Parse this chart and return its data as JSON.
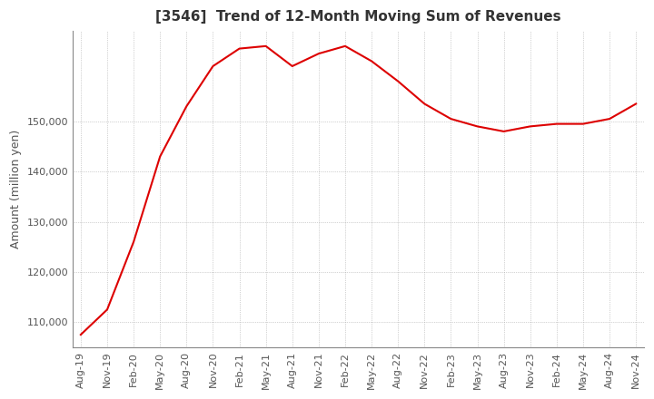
{
  "title": "[3546]  Trend of 12-Month Moving Sum of Revenues",
  "ylabel": "Amount (million yen)",
  "title_fontsize": 11,
  "label_fontsize": 9,
  "tick_fontsize": 8,
  "line_color": "#dd0000",
  "background_color": "#ffffff",
  "grid_color": "#aaaaaa",
  "x_labels": [
    "Aug-19",
    "Nov-19",
    "Feb-20",
    "May-20",
    "Aug-20",
    "Nov-20",
    "Feb-21",
    "May-21",
    "Aug-21",
    "Nov-21",
    "Feb-22",
    "May-22",
    "Aug-22",
    "Nov-22",
    "Feb-23",
    "May-23",
    "Aug-23",
    "Nov-23",
    "Feb-24",
    "May-24",
    "Aug-24",
    "Nov-24"
  ],
  "values": [
    107500,
    112500,
    126000,
    143000,
    153000,
    161000,
    164500,
    165000,
    161000,
    163500,
    165000,
    162000,
    158000,
    153500,
    150500,
    149000,
    148000,
    149000,
    149500,
    149500,
    150500,
    153500
  ],
  "ylim": [
    105000,
    168000
  ],
  "yticks": [
    110000,
    120000,
    130000,
    140000,
    150000
  ]
}
